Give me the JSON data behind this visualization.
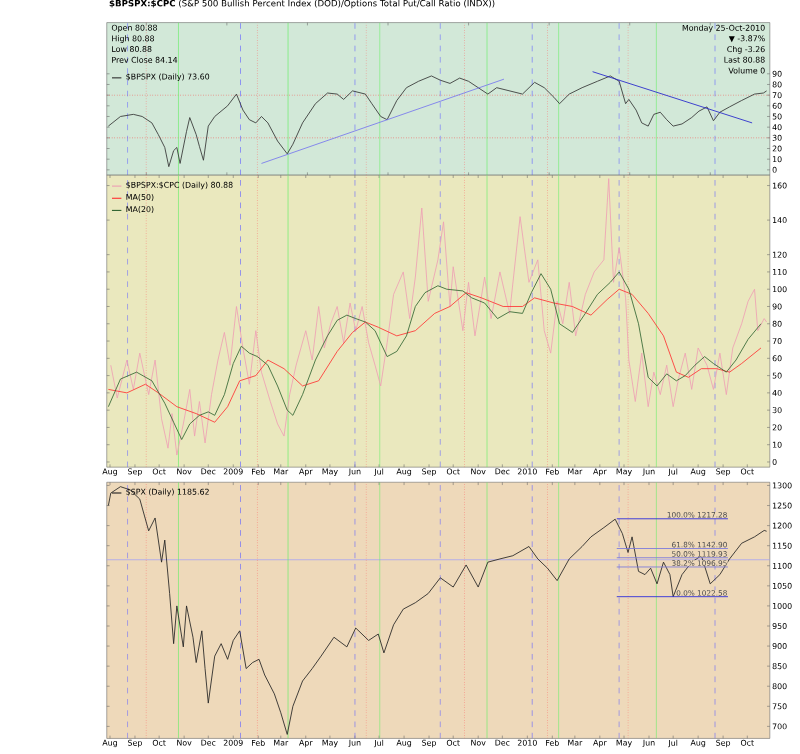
{
  "chart_data": [
    {
      "type": "line",
      "title": "**$BPSPX:$CPC** (S&P 500 Bullish Percent Index (DOD)/Options Total Put/Call Ratio (INDX))",
      "annotations": [
        "Open 80.88",
        "High 80.88",
        "Low 80.88",
        "Prev Close 84.14",
        "Monday 25-Oct-2010",
        "▼ -3.87%",
        "Chg -3.26",
        "Last 80.88",
        "Volume 0"
      ],
      "xlim": [
        "2008-07-28",
        "2010-10-29"
      ],
      "ylim": [
        -5,
        138
      ],
      "tick_labels": "y",
      "legend": "top left",
      "yticks": [
        0,
        10,
        20,
        30,
        40,
        50,
        60,
        70,
        80,
        90
      ],
      "series": [
        {
          "name": "$BPSPX (Daily) 73.60",
          "color": "#333333",
          "x": [
            "2008-07-30",
            "2008-08-14",
            "2008-08-30",
            "2008-09-10",
            "2008-09-22",
            "2008-09-30",
            "2008-10-08",
            "2008-10-13",
            "2008-10-19",
            "2008-10-23",
            "2008-10-27",
            "2008-11-04",
            "2008-11-08",
            "2008-11-16",
            "2008-11-20",
            "2008-11-25",
            "2008-12-01",
            "2008-12-09",
            "2008-12-25",
            "2009-01-05",
            "2009-01-13",
            "2009-01-21",
            "2009-01-29",
            "2009-02-05",
            "2009-02-13",
            "2009-02-25",
            "2009-03-09",
            "2009-03-16",
            "2009-03-28",
            "2009-04-13",
            "2009-04-28",
            "2009-05-10",
            "2009-05-18",
            "2009-05-29",
            "2009-06-14",
            "2009-06-22",
            "2009-07-03",
            "2009-07-11",
            "2009-07-23",
            "2009-08-04",
            "2009-08-19",
            "2009-09-04",
            "2009-09-15",
            "2009-09-27",
            "2009-10-09",
            "2009-10-20",
            "2009-11-01",
            "2009-11-13",
            "2009-11-24",
            "2009-12-10",
            "2009-12-26",
            "2010-01-10",
            "2010-01-22",
            "2010-02-03",
            "2010-02-10",
            "2010-02-22",
            "2010-03-10",
            "2010-03-29",
            "2010-04-14",
            "2010-04-25",
            "2010-05-03",
            "2010-05-07",
            "2010-05-16",
            "2010-05-23",
            "2010-05-31",
            "2010-06-07",
            "2010-06-15",
            "2010-06-23",
            "2010-07-01",
            "2010-07-12",
            "2010-07-24",
            "2010-08-02",
            "2010-08-12",
            "2010-08-20",
            "2010-08-28",
            "2010-09-09",
            "2010-09-24",
            "2010-10-10",
            "2010-10-21",
            "2010-10-25"
          ],
          "values": [
            41,
            50,
            52,
            50,
            44,
            33,
            21,
            3,
            18,
            21,
            6,
            36,
            49,
            33,
            22,
            9,
            41,
            50,
            60,
            71,
            56,
            47,
            44,
            50,
            44,
            27,
            15,
            24,
            44,
            62,
            72,
            71,
            66,
            74,
            71,
            62,
            50,
            47,
            65,
            77,
            83,
            88,
            84,
            81,
            86,
            83,
            77,
            71,
            77,
            74,
            71,
            82,
            77,
            68,
            62,
            71,
            77,
            83,
            88,
            83,
            62,
            66,
            56,
            44,
            41,
            52,
            54,
            47,
            41,
            43,
            49,
            55,
            59,
            46,
            54,
            59,
            65,
            71,
            72,
            74
          ]
        },
        {
          "type": "line",
          "color": "#7777ee",
          "x": [
            "2009-02-05",
            "2009-12-03"
          ],
          "values": [
            6,
            85
          ]
        },
        {
          "type": "line",
          "color": "#2222cc",
          "x": [
            "2010-03-23",
            "2010-10-07"
          ],
          "values": [
            92,
            44
          ]
        }
      ],
      "ref_lines": [
        {
          "axis": "y",
          "value": 70,
          "color": "#ff3333",
          "line_style": "dotted"
        },
        {
          "axis": "y",
          "value": 30,
          "color": "#ff3333",
          "line_style": "dotted"
        },
        {
          "axis": "x",
          "value": "2008-08-23",
          "color": "#6666ff",
          "line_style": "dashed"
        },
        {
          "axis": "x",
          "value": "2009-01-10",
          "color": "#6666ff",
          "line_style": "dashed"
        },
        {
          "axis": "x",
          "value": "2009-06-01",
          "color": "#6666ff",
          "line_style": "dashed"
        },
        {
          "axis": "x",
          "value": "2009-09-15",
          "color": "#6666ff",
          "line_style": "dashed"
        },
        {
          "axis": "x",
          "value": "2010-01-07",
          "color": "#6666ff",
          "line_style": "dashed"
        },
        {
          "axis": "x",
          "value": "2010-04-25",
          "color": "#6666ff",
          "line_style": "dashed"
        },
        {
          "axis": "x",
          "value": "2010-08-22",
          "color": "#6666ff",
          "line_style": "dashed"
        },
        {
          "axis": "x",
          "value": "2008-09-15",
          "color": "#ff6666",
          "line_style": "dotted"
        },
        {
          "axis": "x",
          "value": "2009-01-31",
          "color": "#ff6666",
          "line_style": "dotted"
        },
        {
          "axis": "x",
          "value": "2009-06-15",
          "color": "#ff6666",
          "line_style": "dotted"
        },
        {
          "axis": "x",
          "value": "2009-10-15",
          "color": "#ff6666",
          "line_style": "dotted"
        },
        {
          "axis": "x",
          "value": "2010-01-26",
          "color": "#ff6666",
          "line_style": "dotted"
        },
        {
          "axis": "x",
          "value": "2010-05-06",
          "color": "#ff6666",
          "line_style": "dotted"
        },
        {
          "axis": "x",
          "value": "2008-10-25",
          "color": "#66ee66",
          "line_style": "solid"
        },
        {
          "axis": "x",
          "value": "2009-03-10",
          "color": "#66ee66",
          "line_style": "solid"
        },
        {
          "axis": "x",
          "value": "2009-07-02",
          "color": "#66ee66",
          "line_style": "solid"
        },
        {
          "axis": "x",
          "value": "2009-11-12",
          "color": "#66ee66",
          "line_style": "solid"
        },
        {
          "axis": "x",
          "value": "2010-02-09",
          "color": "#66ee66",
          "line_style": "solid"
        },
        {
          "axis": "x",
          "value": "2010-06-10",
          "color": "#66ee66",
          "line_style": "solid"
        }
      ]
    },
    {
      "type": "line",
      "xlim": [
        "2008-07-28",
        "2010-10-29"
      ],
      "ylim": [
        -3,
        166
      ],
      "legend": "top left",
      "xticks": [
        {
          "value": "2008-08-01",
          "label": "Aug"
        },
        {
          "value": "2008-09-01",
          "label": "Sep"
        },
        {
          "value": "2008-10-01",
          "label": "Oct"
        },
        {
          "value": "2008-11-01",
          "label": "Nov"
        },
        {
          "value": "2008-12-01",
          "label": "Dec"
        },
        {
          "value": "2009-01-01",
          "label": "2009"
        },
        {
          "value": "2009-02-01",
          "label": "Feb"
        },
        {
          "value": "2009-03-01",
          "label": "Mar"
        },
        {
          "value": "2009-04-01",
          "label": "Apr"
        },
        {
          "value": "2009-05-01",
          "label": "May"
        },
        {
          "value": "2009-06-01",
          "label": "Jun"
        },
        {
          "value": "2009-07-01",
          "label": "Jul"
        },
        {
          "value": "2009-08-01",
          "label": "Aug"
        },
        {
          "value": "2009-09-01",
          "label": "Sep"
        },
        {
          "value": "2009-10-01",
          "label": "Oct"
        },
        {
          "value": "2009-11-01",
          "label": "Nov"
        },
        {
          "value": "2009-12-01",
          "label": "Dec"
        },
        {
          "value": "2010-01-01",
          "label": "2010"
        },
        {
          "value": "2010-02-01",
          "label": "Feb"
        },
        {
          "value": "2010-03-01",
          "label": "Mar"
        },
        {
          "value": "2010-04-01",
          "label": "Apr"
        },
        {
          "value": "2010-05-01",
          "label": "May"
        },
        {
          "value": "2010-06-01",
          "label": "Jun"
        },
        {
          "value": "2010-07-01",
          "label": "Jul"
        },
        {
          "value": "2010-08-01",
          "label": "Aug"
        },
        {
          "value": "2010-09-01",
          "label": "Sep"
        },
        {
          "value": "2010-10-01",
          "label": "Oct"
        }
      ],
      "yticks": [
        0,
        10,
        20,
        30,
        40,
        50,
        60,
        70,
        80,
        90,
        100,
        110,
        120,
        140,
        160
      ],
      "series": [
        {
          "name": "$BPSPX:$CPC (Daily) 80.88",
          "color": "#eea0b4",
          "x": [
            "2008-08-02",
            "2008-08-10",
            "2008-08-22",
            "2008-08-30",
            "2008-09-07",
            "2008-09-18",
            "2008-09-26",
            "2008-10-04",
            "2008-10-12",
            "2008-10-17",
            "2008-10-23",
            "2008-10-31",
            "2008-11-08",
            "2008-11-14",
            "2008-11-20",
            "2008-11-27",
            "2008-12-05",
            "2008-12-13",
            "2008-12-21",
            "2008-12-28",
            "2009-01-05",
            "2009-01-13",
            "2009-01-21",
            "2009-01-29",
            "2009-02-05",
            "2009-02-16",
            "2009-02-25",
            "2009-03-05",
            "2009-03-12",
            "2009-03-20",
            "2009-04-01",
            "2009-04-09",
            "2009-04-17",
            "2009-04-24",
            "2009-05-02",
            "2009-05-10",
            "2009-05-18",
            "2009-05-26",
            "2009-06-02",
            "2009-06-10",
            "2009-06-18",
            "2009-06-26",
            "2009-07-03",
            "2009-07-11",
            "2009-07-19",
            "2009-07-31",
            "2009-08-08",
            "2009-08-15",
            "2009-08-23",
            "2009-08-31",
            "2009-09-12",
            "2009-09-19",
            "2009-09-27",
            "2009-10-01",
            "2009-10-13",
            "2009-10-20",
            "2009-10-28",
            "2009-11-09",
            "2009-11-17",
            "2009-11-28",
            "2009-12-10",
            "2009-12-23",
            "2010-01-03",
            "2010-01-14",
            "2010-01-22",
            "2010-01-30",
            "2010-02-07",
            "2010-02-14",
            "2010-02-22",
            "2010-03-02",
            "2010-03-14",
            "2010-03-25",
            "2010-04-06",
            "2010-04-12",
            "2010-04-18",
            "2010-04-25",
            "2010-05-03",
            "2010-05-07",
            "2010-05-15",
            "2010-05-23",
            "2010-05-31",
            "2010-06-07",
            "2010-06-15",
            "2010-06-23",
            "2010-07-01",
            "2010-07-08",
            "2010-07-16",
            "2010-07-24",
            "2010-08-01",
            "2010-08-12",
            "2010-08-20",
            "2010-08-28",
            "2010-09-05",
            "2010-09-13",
            "2010-09-24",
            "2010-10-02",
            "2010-10-10",
            "2010-10-14",
            "2010-10-22",
            "2010-10-25"
          ],
          "values": [
            56,
            37,
            59,
            42,
            63,
            39,
            59,
            25,
            8,
            28,
            4,
            22,
            42,
            15,
            35,
            11,
            39,
            59,
            75,
            56,
            90,
            66,
            45,
            76,
            52,
            35,
            22,
            15,
            39,
            56,
            76,
            59,
            90,
            66,
            80,
            90,
            69,
            92,
            76,
            90,
            69,
            56,
            44,
            69,
            97,
            110,
            83,
            107,
            147,
            93,
            117,
            139,
            90,
            113,
            76,
            104,
            73,
            107,
            83,
            110,
            86,
            142,
            104,
            117,
            76,
            63,
            93,
            80,
            104,
            73,
            97,
            110,
            117,
            164,
            104,
            124,
            95,
            59,
            35,
            63,
            32,
            52,
            39,
            56,
            32,
            49,
            63,
            42,
            66,
            56,
            42,
            63,
            39,
            66,
            80,
            93,
            100,
            76,
            83,
            81
          ]
        },
        {
          "name": "MA(50)",
          "color": "#ff3333",
          "x": [
            "2008-07-30",
            "2008-08-22",
            "2008-09-14",
            "2008-09-30",
            "2008-10-23",
            "2008-11-16",
            "2008-12-09",
            "2008-12-25",
            "2009-01-09",
            "2009-01-29",
            "2009-02-13",
            "2009-03-05",
            "2009-03-28",
            "2009-04-17",
            "2009-05-10",
            "2009-05-29",
            "2009-06-14",
            "2009-06-30",
            "2009-07-23",
            "2009-08-15",
            "2009-09-08",
            "2009-09-27",
            "2009-10-17",
            "2009-11-05",
            "2009-12-02",
            "2009-12-26",
            "2010-01-10",
            "2010-02-03",
            "2010-02-26",
            "2010-03-21",
            "2010-04-10",
            "2010-04-25",
            "2010-05-11",
            "2010-05-31",
            "2010-06-19",
            "2010-07-05",
            "2010-07-20",
            "2010-08-05",
            "2010-08-24",
            "2010-09-09",
            "2010-09-24",
            "2010-10-18"
          ],
          "values": [
            42,
            40,
            45,
            40,
            32,
            28,
            23,
            32,
            47,
            50,
            59,
            54,
            44,
            47,
            64,
            75,
            81,
            78,
            73,
            76,
            86,
            90,
            98,
            95,
            90,
            90,
            95,
            92,
            90,
            85,
            94,
            100,
            97,
            86,
            73,
            52,
            49,
            54,
            54,
            52,
            57,
            66
          ]
        },
        {
          "name": "MA(20)",
          "color": "#336633",
          "x": [
            "2008-07-30",
            "2008-08-14",
            "2008-09-03",
            "2008-09-22",
            "2008-10-08",
            "2008-10-19",
            "2008-10-29",
            "2008-11-08",
            "2008-11-20",
            "2008-12-01",
            "2008-12-09",
            "2008-12-21",
            "2009-01-01",
            "2009-01-11",
            "2009-01-21",
            "2009-01-31",
            "2009-02-13",
            "2009-02-25",
            "2009-03-09",
            "2009-03-16",
            "2009-03-28",
            "2009-04-13",
            "2009-04-28",
            "2009-05-10",
            "2009-05-22",
            "2009-06-02",
            "2009-06-14",
            "2009-06-26",
            "2009-07-11",
            "2009-07-23",
            "2009-08-04",
            "2009-08-15",
            "2009-08-27",
            "2009-09-12",
            "2009-09-23",
            "2009-10-13",
            "2009-10-24",
            "2009-11-09",
            "2009-11-25",
            "2009-12-10",
            "2009-12-26",
            "2010-01-06",
            "2010-01-18",
            "2010-01-30",
            "2010-02-10",
            "2010-02-26",
            "2010-03-14",
            "2010-03-29",
            "2010-04-14",
            "2010-04-25",
            "2010-05-07",
            "2010-05-19",
            "2010-05-31",
            "2010-06-11",
            "2010-06-23",
            "2010-07-05",
            "2010-07-16",
            "2010-07-28",
            "2010-08-09",
            "2010-08-20",
            "2010-09-05",
            "2010-09-17",
            "2010-10-02",
            "2010-10-18"
          ],
          "values": [
            32,
            48,
            52,
            47,
            34,
            23,
            13,
            22,
            27,
            29,
            27,
            39,
            57,
            67,
            63,
            61,
            56,
            44,
            30,
            27,
            39,
            59,
            73,
            82,
            85,
            83,
            81,
            76,
            61,
            64,
            73,
            90,
            98,
            102,
            100,
            99,
            95,
            92,
            83,
            87,
            86,
            98,
            109,
            100,
            80,
            75,
            86,
            97,
            104,
            110,
            100,
            80,
            49,
            44,
            51,
            47,
            50,
            56,
            61,
            57,
            52,
            59,
            71,
            80
          ]
        }
      ],
      "ref_lines": [
        {
          "axis": "x",
          "value": "2008-08-23",
          "color": "#6666ff",
          "line_style": "dashed"
        },
        {
          "axis": "x",
          "value": "2009-01-10",
          "color": "#6666ff",
          "line_style": "dashed"
        },
        {
          "axis": "x",
          "value": "2009-06-01",
          "color": "#6666ff",
          "line_style": "dashed"
        },
        {
          "axis": "x",
          "value": "2009-09-15",
          "color": "#6666ff",
          "line_style": "dashed"
        },
        {
          "axis": "x",
          "value": "2010-01-07",
          "color": "#6666ff",
          "line_style": "dashed"
        },
        {
          "axis": "x",
          "value": "2010-04-25",
          "color": "#6666ff",
          "line_style": "dashed"
        },
        {
          "axis": "x",
          "value": "2010-08-22",
          "color": "#6666ff",
          "line_style": "dashed"
        },
        {
          "axis": "x",
          "value": "2008-09-15",
          "color": "#ff6666",
          "line_style": "dotted"
        },
        {
          "axis": "x",
          "value": "2009-01-31",
          "color": "#ff6666",
          "line_style": "dotted"
        },
        {
          "axis": "x",
          "value": "2009-06-15",
          "color": "#ff6666",
          "line_style": "dotted"
        },
        {
          "axis": "x",
          "value": "2009-10-15",
          "color": "#ff6666",
          "line_style": "dotted"
        },
        {
          "axis": "x",
          "value": "2010-01-26",
          "color": "#ff6666",
          "line_style": "dotted"
        },
        {
          "axis": "x",
          "value": "2010-05-06",
          "color": "#ff6666",
          "line_style": "dotted"
        },
        {
          "axis": "x",
          "value": "2008-10-25",
          "color": "#66ee66",
          "line_style": "solid"
        },
        {
          "axis": "x",
          "value": "2009-03-10",
          "color": "#66ee66",
          "line_style": "solid"
        },
        {
          "axis": "x",
          "value": "2009-07-02",
          "color": "#66ee66",
          "line_style": "solid"
        },
        {
          "axis": "x",
          "value": "2009-11-12",
          "color": "#66ee66",
          "line_style": "solid"
        },
        {
          "axis": "x",
          "value": "2010-02-09",
          "color": "#66ee66",
          "line_style": "solid"
        },
        {
          "axis": "x",
          "value": "2010-06-10",
          "color": "#66ee66",
          "line_style": "solid"
        }
      ]
    },
    {
      "type": "line",
      "annotations": [
        {
          "text": "100.0% 1217.28",
          "x": "2010-09-07",
          "y": 1217.28
        },
        {
          "text": "61.8% 1142.90",
          "x": "2010-09-07",
          "y": 1142.9
        },
        {
          "text": "50.0% 1119.93",
          "x": "2010-09-07",
          "y": 1119.93
        },
        {
          "text": "38.2% 1096.95",
          "x": "2010-09-07",
          "y": 1096.95
        },
        {
          "text": "0.0% 1022.58",
          "x": "2010-09-07",
          "y": 1022.58
        }
      ],
      "xlim": [
        "2008-07-28",
        "2010-10-29"
      ],
      "ylim": [
        670,
        1308
      ],
      "legend": "top left",
      "xticks": [
        {
          "value": "2008-08-01",
          "label": "Aug"
        },
        {
          "value": "2008-09-01",
          "label": "Sep"
        },
        {
          "value": "2008-10-01",
          "label": "Oct"
        },
        {
          "value": "2008-11-01",
          "label": "Nov"
        },
        {
          "value": "2008-12-01",
          "label": "Dec"
        },
        {
          "value": "2009-01-01",
          "label": "2009"
        },
        {
          "value": "2009-02-01",
          "label": "Feb"
        },
        {
          "value": "2009-03-01",
          "label": "Mar"
        },
        {
          "value": "2009-04-01",
          "label": "Apr"
        },
        {
          "value": "2009-05-01",
          "label": "May"
        },
        {
          "value": "2009-06-01",
          "label": "Jun"
        },
        {
          "value": "2009-07-01",
          "label": "Jul"
        },
        {
          "value": "2009-08-01",
          "label": "Aug"
        },
        {
          "value": "2009-09-01",
          "label": "Sep"
        },
        {
          "value": "2009-10-01",
          "label": "Oct"
        },
        {
          "value": "2009-11-01",
          "label": "Nov"
        },
        {
          "value": "2009-12-01",
          "label": "Dec"
        },
        {
          "value": "2010-01-01",
          "label": "2010"
        },
        {
          "value": "2010-02-01",
          "label": "Feb"
        },
        {
          "value": "2010-03-01",
          "label": "Mar"
        },
        {
          "value": "2010-04-01",
          "label": "Apr"
        },
        {
          "value": "2010-05-01",
          "label": "May"
        },
        {
          "value": "2010-06-01",
          "label": "Jun"
        },
        {
          "value": "2010-07-01",
          "label": "Jul"
        },
        {
          "value": "2010-08-01",
          "label": "Aug"
        },
        {
          "value": "2010-09-01",
          "label": "Sep"
        },
        {
          "value": "2010-10-01",
          "label": "Oct"
        }
      ],
      "yticks": [
        700,
        750,
        800,
        850,
        900,
        950,
        1000,
        1050,
        1100,
        1150,
        1200,
        1250,
        1300
      ],
      "series": [
        {
          "name": "$SPX (Daily) 1185.62",
          "color": "#222222",
          "x": [
            "2008-07-30",
            "2008-08-02",
            "2008-08-14",
            "2008-08-26",
            "2008-09-07",
            "2008-09-18",
            "2008-09-26",
            "2008-10-04",
            "2008-10-08",
            "2008-10-14",
            "2008-10-19",
            "2008-10-23",
            "2008-10-31",
            "2008-11-04",
            "2008-11-12",
            "2008-11-16",
            "2008-11-23",
            "2008-11-27",
            "2008-12-01",
            "2008-12-09",
            "2008-12-17",
            "2008-12-25",
            "2009-01-01",
            "2009-01-09",
            "2009-01-17",
            "2009-01-25",
            "2009-02-02",
            "2009-02-09",
            "2009-02-21",
            "2009-03-01",
            "2009-03-09",
            "2009-03-16",
            "2009-03-28",
            "2009-04-09",
            "2009-04-20",
            "2009-05-06",
            "2009-05-22",
            "2009-06-02",
            "2009-06-18",
            "2009-06-30",
            "2009-07-07",
            "2009-07-19",
            "2009-07-31",
            "2009-08-15",
            "2009-08-31",
            "2009-09-15",
            "2009-10-01",
            "2009-10-17",
            "2009-11-01",
            "2009-11-13",
            "2009-11-28",
            "2009-12-14",
            "2010-01-03",
            "2010-01-14",
            "2010-01-26",
            "2010-02-07",
            "2010-02-22",
            "2010-03-10",
            "2010-03-21",
            "2010-04-06",
            "2010-04-20",
            "2010-04-29",
            "2010-05-06",
            "2010-05-11",
            "2010-05-19",
            "2010-05-27",
            "2010-06-03",
            "2010-06-11",
            "2010-06-19",
            "2010-06-27",
            "2010-07-01",
            "2010-07-12",
            "2010-07-24",
            "2010-08-05",
            "2010-08-16",
            "2010-08-28",
            "2010-09-09",
            "2010-09-24",
            "2010-10-10",
            "2010-10-22",
            "2010-10-25"
          ],
          "values": [
            1250,
            1281,
            1297,
            1289,
            1266,
            1187,
            1219,
            1109,
            1164,
            1031,
            906,
            1000,
            898,
            1000,
            922,
            859,
            938,
            844,
            758,
            875,
            906,
            867,
            914,
            938,
            844,
            859,
            867,
            828,
            781,
            734,
            680,
            750,
            813,
            844,
            875,
            922,
            898,
            945,
            914,
            930,
            883,
            953,
            992,
            1008,
            1031,
            1070,
            1047,
            1102,
            1047,
            1109,
            1117,
            1125,
            1148,
            1117,
            1094,
            1063,
            1117,
            1148,
            1172,
            1195,
            1216,
            1180,
            1133,
            1172,
            1086,
            1078,
            1094,
            1055,
            1109,
            1078,
            1023,
            1078,
            1109,
            1125,
            1055,
            1078,
            1117,
            1156,
            1172,
            1188,
            1186
          ]
        },
        {
          "type": "line",
          "color": "#2222dd",
          "x": [
            "2010-04-22",
            "2010-09-07"
          ],
          "values": [
            1217,
            1217
          ]
        },
        {
          "type": "line",
          "color": "#7777dd",
          "x": [
            "2010-04-22",
            "2010-09-07"
          ],
          "values": [
            1143,
            1143
          ]
        },
        {
          "type": "line",
          "color": "#7777dd",
          "x": [
            "2010-04-22",
            "2010-09-07"
          ],
          "values": [
            1120,
            1120
          ]
        },
        {
          "type": "line",
          "color": "#7777dd",
          "x": [
            "2010-04-22",
            "2010-09-07"
          ],
          "values": [
            1097,
            1097
          ]
        },
        {
          "type": "line",
          "color": "#2222dd",
          "x": [
            "2010-04-22",
            "2010-09-07"
          ],
          "values": [
            1023,
            1023
          ]
        }
      ],
      "ref_lines": [
        {
          "axis": "y",
          "value": 1115,
          "color": "#9999ff",
          "line_style": "solid"
        },
        {
          "axis": "x",
          "value": "2008-08-23",
          "color": "#6666ff",
          "line_style": "dashed"
        },
        {
          "axis": "x",
          "value": "2009-01-10",
          "color": "#6666ff",
          "line_style": "dashed"
        },
        {
          "axis": "x",
          "value": "2009-06-01",
          "color": "#6666ff",
          "line_style": "dashed"
        },
        {
          "axis": "x",
          "value": "2009-09-15",
          "color": "#6666ff",
          "line_style": "dashed"
        },
        {
          "axis": "x",
          "value": "2010-01-07",
          "color": "#6666ff",
          "line_style": "dashed"
        },
        {
          "axis": "x",
          "value": "2010-04-25",
          "color": "#6666ff",
          "line_style": "dashed"
        },
        {
          "axis": "x",
          "value": "2010-08-22",
          "color": "#6666ff",
          "line_style": "dashed"
        },
        {
          "axis": "x",
          "value": "2008-09-15",
          "color": "#ff6666",
          "line_style": "dotted"
        },
        {
          "axis": "x",
          "value": "2009-01-31",
          "color": "#ff6666",
          "line_style": "dotted"
        },
        {
          "axis": "x",
          "value": "2009-06-15",
          "color": "#ff6666",
          "line_style": "dotted"
        },
        {
          "axis": "x",
          "value": "2009-10-15",
          "color": "#ff6666",
          "line_style": "dotted"
        },
        {
          "axis": "x",
          "value": "2010-01-26",
          "color": "#ff6666",
          "line_style": "dotted"
        },
        {
          "axis": "x",
          "value": "2010-05-06",
          "color": "#ff6666",
          "line_style": "dotted"
        },
        {
          "axis": "x",
          "value": "2008-10-25",
          "color": "#66ee66",
          "line_style": "solid"
        },
        {
          "axis": "x",
          "value": "2009-03-10",
          "color": "#66ee66",
          "line_style": "solid"
        },
        {
          "axis": "x",
          "value": "2009-07-02",
          "color": "#66ee66",
          "line_style": "solid"
        },
        {
          "axis": "x",
          "value": "2009-11-12",
          "color": "#66ee66",
          "line_style": "solid"
        },
        {
          "axis": "x",
          "value": "2010-02-09",
          "color": "#66ee66",
          "line_style": "solid"
        },
        {
          "axis": "x",
          "value": "2010-06-10",
          "color": "#66ee66",
          "line_style": "solid"
        }
      ]
    }
  ]
}
